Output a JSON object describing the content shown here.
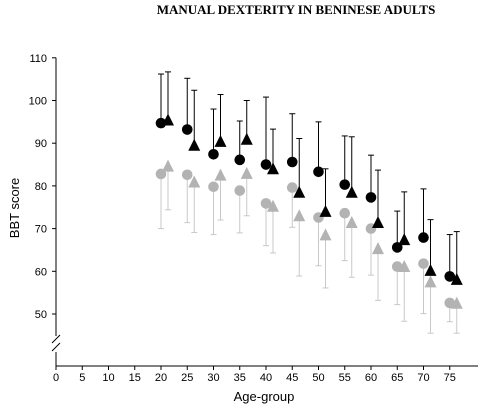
{
  "chart_data": {
    "type": "scatter",
    "title": "MANUAL DEXTERITY IN BENINESE ADULTS",
    "xlabel": "Age-group",
    "ylabel": "BBT score",
    "xlim": [
      0,
      80
    ],
    "ylim": [
      40,
      110
    ],
    "x_ticks": [
      "0",
      "5",
      "10",
      "15",
      "20",
      "25",
      "30",
      "35",
      "40",
      "45",
      "50",
      "55",
      "60",
      "65",
      "70",
      "75"
    ],
    "y_ticks": [
      "50",
      "60",
      "70",
      "80",
      "90",
      "100",
      "110"
    ],
    "y_axis_break": true,
    "legend": "none",
    "grid": false,
    "error_bars": "upper for black series, lower for gray series",
    "series": [
      {
        "marker": "circle",
        "color": "#000000",
        "error_direction": "up",
        "x": [
          20,
          25,
          30,
          35,
          40,
          45,
          50,
          55,
          60,
          65,
          70,
          75
        ],
        "y": [
          94.7,
          93.2,
          87.4,
          86.1,
          85.0,
          85.6,
          83.3,
          80.3,
          77.3,
          65.6,
          67.9,
          58.8
        ],
        "err": [
          11.5,
          12.0,
          10.6,
          9.1,
          15.8,
          11.3,
          11.7,
          11.4,
          9.9,
          8.5,
          11.4,
          9.8
        ]
      },
      {
        "marker": "triangle",
        "color": "#000000",
        "error_direction": "up",
        "x": [
          20,
          25,
          30,
          35,
          40,
          45,
          50,
          55,
          60,
          65,
          70,
          75
        ],
        "y": [
          95.2,
          89.3,
          90.2,
          90.7,
          83.8,
          78.3,
          73.8,
          78.3,
          71.2,
          67.2,
          60.0,
          57.9
        ],
        "err": [
          11.5,
          13.1,
          11.2,
          9.3,
          9.5,
          12.8,
          10.2,
          13.2,
          12.5,
          11.4,
          12.1,
          11.4
        ]
      },
      {
        "marker": "circle",
        "color": "#b3b3b3",
        "error_direction": "down",
        "x": [
          20,
          25,
          30,
          35,
          40,
          45,
          50,
          55,
          60,
          65,
          70,
          75
        ],
        "y": [
          82.8,
          82.6,
          79.8,
          78.9,
          75.9,
          79.6,
          72.6,
          73.6,
          70.0,
          61.1,
          61.8,
          52.6
        ],
        "err": [
          12.8,
          11.2,
          11.2,
          9.9,
          9.9,
          9.3,
          11.3,
          11.1,
          10.9,
          8.9,
          11.7,
          4.4
        ]
      },
      {
        "marker": "triangle",
        "color": "#b3b3b3",
        "error_direction": "down",
        "x": [
          20,
          25,
          30,
          35,
          40,
          45,
          50,
          55,
          60,
          65,
          70,
          75
        ],
        "y": [
          84.4,
          80.7,
          82.3,
          82.7,
          75.0,
          72.8,
          68.3,
          71.2,
          65.1,
          60.9,
          57.3,
          52.3
        ],
        "err": [
          10.0,
          11.6,
          10.3,
          9.7,
          10.7,
          13.9,
          12.2,
          12.6,
          11.9,
          12.6,
          11.8,
          6.8
        ]
      }
    ]
  }
}
